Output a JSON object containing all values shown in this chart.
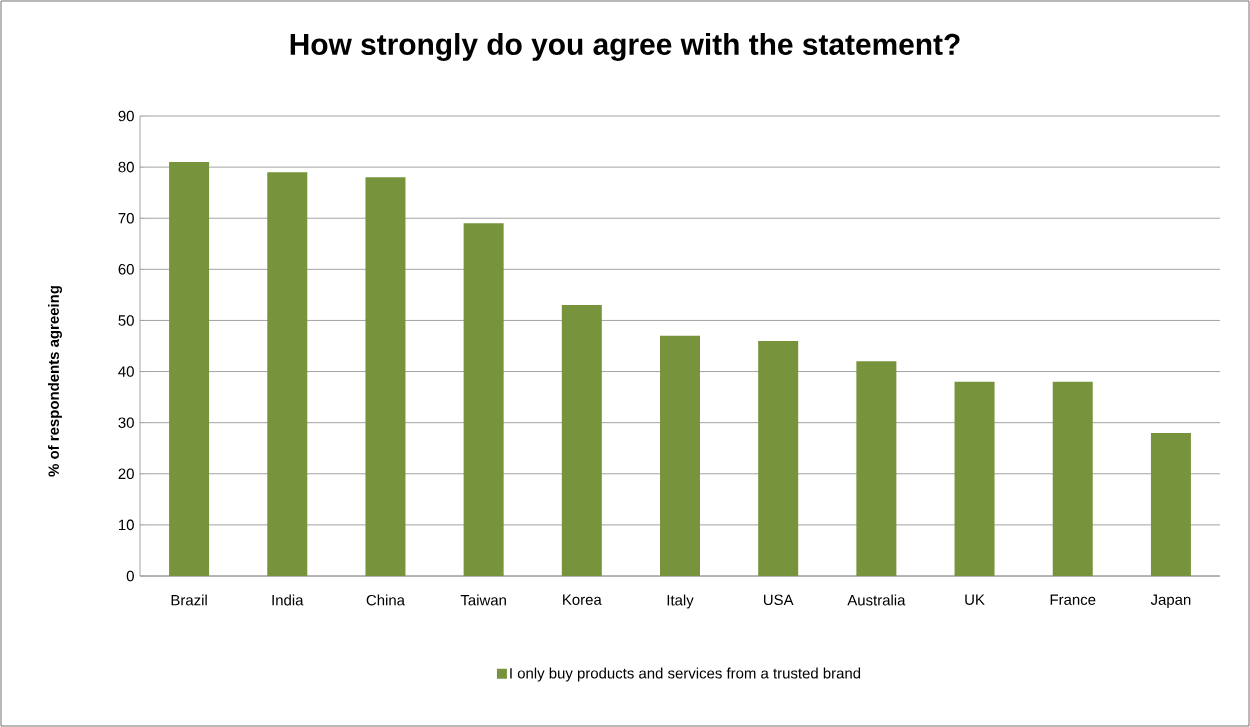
{
  "chart_data": {
    "type": "bar",
    "title": "How strongly do you agree with the statement?",
    "ylabel": "% of respondents agreeing",
    "categories": [
      "Brazil",
      "India",
      "China",
      "Taiwan",
      "Korea",
      "Italy",
      "USA",
      "Australia",
      "UK",
      "France",
      "Japan"
    ],
    "series": [
      {
        "name": "I only buy products and services from a trusted brand",
        "color": "#77933c",
        "values": [
          81,
          79,
          78,
          69,
          53,
          47,
          46,
          42,
          38,
          38,
          28
        ]
      }
    ],
    "ylim": [
      0,
      90
    ],
    "yticks": [
      0,
      10,
      20,
      30,
      40,
      50,
      60,
      70,
      80,
      90
    ],
    "grid": "y",
    "legend": "bottom"
  }
}
